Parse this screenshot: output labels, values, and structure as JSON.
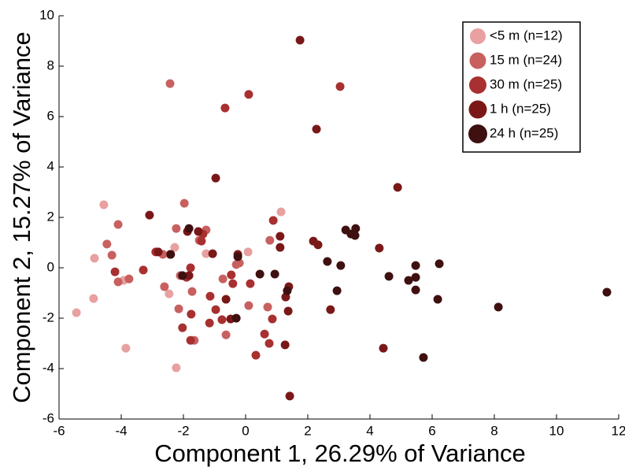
{
  "chart_data": {
    "type": "scatter",
    "xlabel": "Component 1, 26.29% of Variance",
    "ylabel": "Component 2, 15.27% of Variance",
    "xlim": [
      -6,
      12
    ],
    "ylim": [
      -6,
      10
    ],
    "xticks": [
      -6,
      -4,
      -2,
      0,
      2,
      4,
      6,
      8,
      10,
      12
    ],
    "yticks": [
      -6,
      -4,
      -2,
      0,
      2,
      4,
      6,
      8,
      10
    ],
    "legend": "upper right",
    "series": [
      {
        "name": "<5 m (n=12)",
        "color": "#e8a0a0",
        "x": [
          -4.56,
          -4.86,
          -5.44,
          -4.89,
          -3.85,
          -2.23,
          -2.46,
          -2.28,
          -1.27,
          0.08,
          1.14,
          -3.92
        ],
        "y": [
          2.5,
          0.38,
          -1.78,
          -1.22,
          -3.19,
          -3.97,
          -1.03,
          0.81,
          0.56,
          0.63,
          2.22,
          -0.5
        ]
      },
      {
        "name": "15 m (n=24)",
        "color": "#c86060",
        "x": [
          -2.43,
          -4.46,
          -4.3,
          -4.1,
          -4.1,
          -3.75,
          -2.66,
          -2.43,
          -1.97,
          -2.23,
          -2.1,
          -2.15,
          -2.61,
          -1.49,
          -1.27,
          -0.73,
          -0.63,
          -0.3,
          0.1,
          0.71,
          0.78,
          -0.2,
          -1.65,
          -1.72
        ],
        "y": [
          7.31,
          0.94,
          0.5,
          1.72,
          -0.56,
          -0.44,
          0.53,
          0.53,
          2.56,
          1.56,
          -0.31,
          -1.63,
          -0.75,
          1.09,
          1.5,
          -0.44,
          -2.66,
          0.13,
          -1.5,
          -1.56,
          1.09,
          0.19,
          -2.88,
          -0.94
        ]
      },
      {
        "name": "30 m (n=25)",
        "color": "#a83030",
        "x": [
          -0.66,
          0.1,
          3.04,
          0.89,
          -1.75,
          -2.03,
          -1.77,
          -1.42,
          -1.16,
          -1.14,
          -0.96,
          -0.76,
          -0.46,
          -0.41,
          0.15,
          0.33,
          0.61,
          0.76,
          0.86,
          -1.77,
          -1.9,
          -3.29,
          -4.2,
          -2.89,
          -1.37
        ],
        "y": [
          6.34,
          6.88,
          7.19,
          1.88,
          -1.84,
          -2.38,
          -2.88,
          1.06,
          -2.19,
          -1.13,
          -1.66,
          -2.06,
          -0.28,
          -0.63,
          -0.63,
          -3.47,
          -2.63,
          -3.0,
          -2.03,
          0,
          -0.38,
          -0.09,
          -0.16,
          0.63,
          1.34
        ]
      },
      {
        "name": "1 h (n=25)",
        "color": "#7a1818",
        "x": [
          1.75,
          2.28,
          4.89,
          -0.96,
          -3.09,
          -1.87,
          -1.52,
          -0.25,
          1.11,
          1.11,
          2.18,
          2.33,
          1.39,
          1.29,
          1.37,
          1.27,
          1.42,
          -1.82,
          -0.63,
          -0.48,
          -1.06,
          4.3,
          2.73,
          4.43,
          -2.81
        ],
        "y": [
          9.03,
          5.5,
          3.19,
          3.56,
          2.09,
          1.44,
          1.44,
          0.53,
          1.25,
          0.81,
          1.06,
          0.91,
          -0.75,
          -1.16,
          -1.72,
          -3.06,
          -5.09,
          -0.31,
          -1.25,
          -2.03,
          0.56,
          0.78,
          -1.66,
          -3.19,
          0.63
        ]
      },
      {
        "name": "24 h (n=25)",
        "color": "#3f1010",
        "x": [
          11.62,
          8.13,
          6.23,
          6.18,
          5.72,
          5.47,
          5.47,
          5.47,
          5.24,
          4.61,
          3.39,
          3.52,
          3.22,
          3.06,
          2.63,
          2.94,
          0.46,
          -0.25,
          0.94,
          -2.03,
          -0.3,
          -2.41,
          -1.82,
          1.34,
          3.54
        ],
        "y": [
          -0.97,
          -1.56,
          0.16,
          -1.25,
          -3.56,
          0.09,
          -0.38,
          -0.88,
          -0.5,
          -0.34,
          1.34,
          1.28,
          1.5,
          0.09,
          0.25,
          -0.91,
          -0.25,
          0.44,
          -0.25,
          -0.31,
          -2.0,
          0.53,
          1.56,
          -0.91,
          1.56
        ]
      }
    ]
  }
}
